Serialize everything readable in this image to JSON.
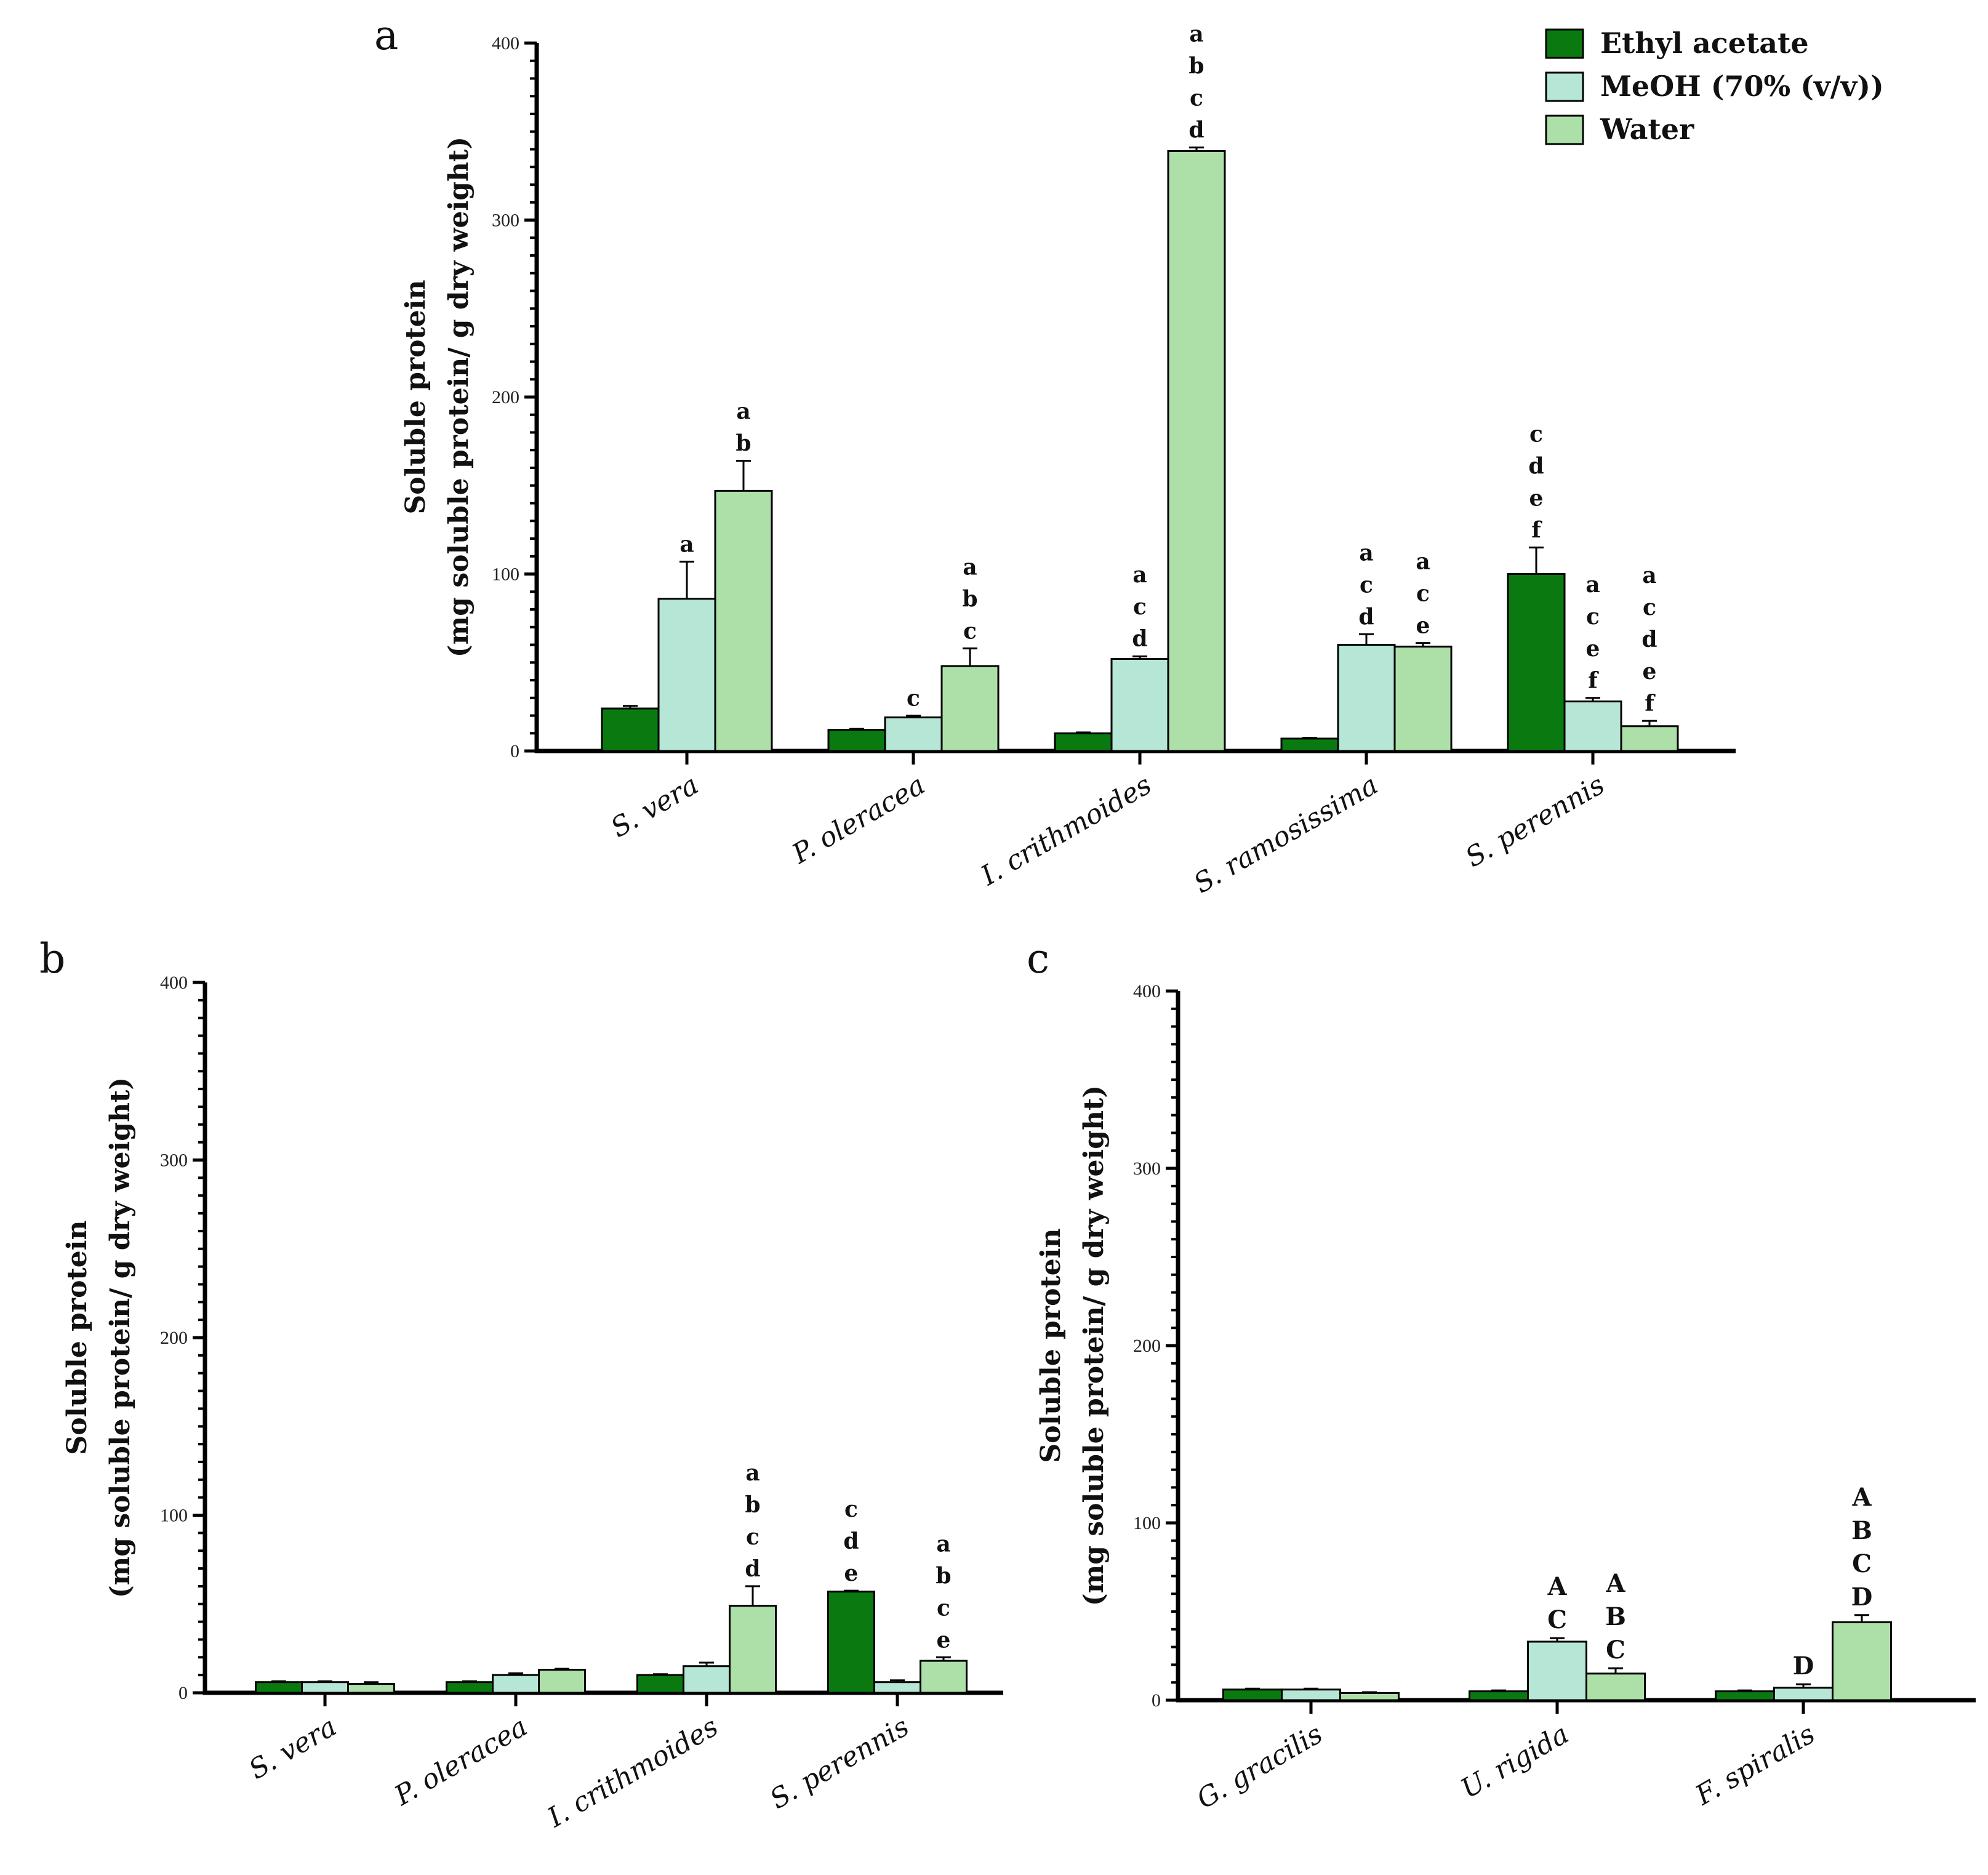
{
  "legend": [
    {
      "label": "Ethyl acetate",
      "color": "#0a7a10"
    },
    {
      "label": "MeOH (70% (v/v))",
      "color": "#b6e6d6"
    },
    {
      "label": "Water",
      "color": "#ade0a9"
    }
  ],
  "chart_data": [
    {
      "panel": "a",
      "type": "bar",
      "ylabel": [
        "Soluble protein",
        "(mg soluble protein/ g dry weight)"
      ],
      "ylim": [
        0,
        400
      ],
      "yticks": [
        0,
        100,
        200,
        300,
        400
      ],
      "categories": [
        "S. vera",
        "P. oleracea",
        "I. crithmoides",
        "S. ramosissima",
        "S. perennis"
      ],
      "series": [
        {
          "name": "Ethyl acetate",
          "values": [
            24,
            12,
            10,
            7,
            100
          ],
          "errors": [
            1.5,
            0.5,
            0.5,
            0.5,
            15
          ],
          "labels": [
            "",
            "",
            "",
            "",
            "c d e f"
          ]
        },
        {
          "name": "MeOH (70% (v/v))",
          "values": [
            86,
            19,
            52,
            60,
            28
          ],
          "errors": [
            21,
            1,
            1.5,
            6,
            2
          ],
          "labels": [
            "a",
            "c",
            "a c d",
            "a c d",
            "a c e f"
          ]
        },
        {
          "name": "Water",
          "values": [
            147,
            48,
            339,
            59,
            14
          ],
          "errors": [
            17,
            10,
            2,
            2,
            3
          ],
          "labels": [
            "a b",
            "a b c",
            "a b c d",
            "a c e",
            "a c d e f"
          ]
        }
      ]
    },
    {
      "panel": "b",
      "type": "bar",
      "ylabel": [
        "Soluble protein",
        "(mg soluble protein/ g dry weight)"
      ],
      "ylim": [
        0,
        400
      ],
      "yticks": [
        0,
        100,
        200,
        300,
        400
      ],
      "categories": [
        "S. vera",
        "P. oleracea",
        "I. crithmoides",
        "S. perennis"
      ],
      "series": [
        {
          "name": "Ethyl acetate",
          "values": [
            6,
            6,
            10,
            57
          ],
          "errors": [
            0.5,
            0.5,
            0.5,
            0.5
          ],
          "labels": [
            "",
            "",
            "",
            "c d e"
          ]
        },
        {
          "name": "MeOH (70% (v/v))",
          "values": [
            6,
            10,
            15,
            6
          ],
          "errors": [
            0.5,
            1,
            2,
            1
          ],
          "labels": [
            "",
            "",
            "",
            ""
          ]
        },
        {
          "name": "Water",
          "values": [
            5,
            13,
            49,
            18
          ],
          "errors": [
            1,
            0.5,
            11,
            2
          ],
          "labels": [
            "",
            "",
            "a b c d",
            "a b c e"
          ]
        }
      ]
    },
    {
      "panel": "c",
      "type": "bar",
      "ylabel": [
        "Soluble protein",
        "(mg soluble protein/ g dry weight)"
      ],
      "ylim": [
        0,
        400
      ],
      "yticks": [
        0,
        100,
        200,
        300,
        400
      ],
      "categories": [
        "G. gracilis",
        "U. rigida",
        "F. spiralis"
      ],
      "series": [
        {
          "name": "Ethyl acetate",
          "values": [
            6,
            5,
            5
          ],
          "errors": [
            0.5,
            0.5,
            0.5
          ],
          "labels": [
            "",
            "",
            ""
          ]
        },
        {
          "name": "MeOH (70% (v/v))",
          "values": [
            6,
            33,
            7
          ],
          "errors": [
            0.5,
            2,
            2
          ],
          "labels": [
            "",
            "A C",
            "D"
          ]
        },
        {
          "name": "Water",
          "values": [
            4,
            15,
            44
          ],
          "errors": [
            0.5,
            3,
            4
          ],
          "labels": [
            "",
            "A B C",
            "A B C D"
          ]
        }
      ]
    }
  ]
}
